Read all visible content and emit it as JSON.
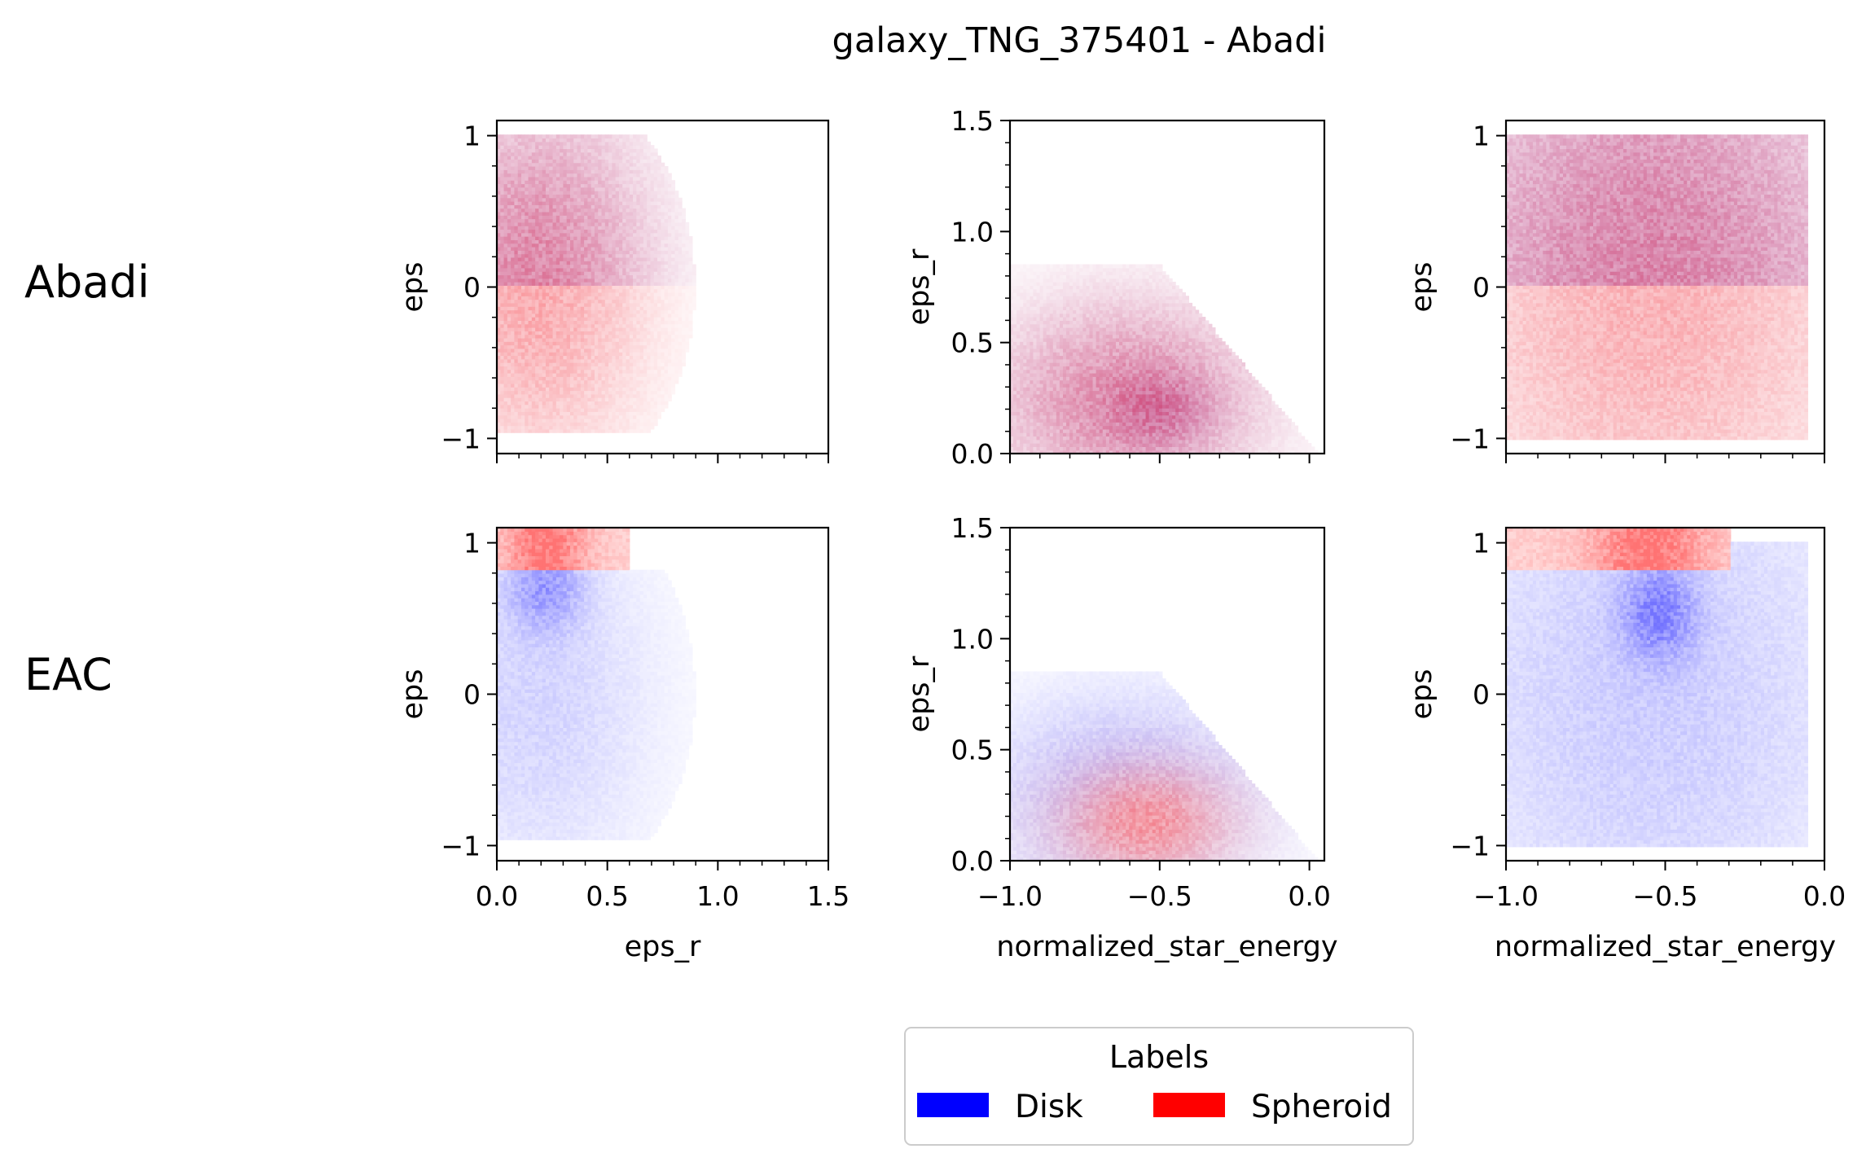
{
  "title": "galaxy_TNG_375401 - Abadi",
  "row_labels": [
    "Abadi",
    "EAC"
  ],
  "legend": {
    "title": "Labels",
    "entries": [
      {
        "name": "Disk",
        "color": "#0000ff"
      },
      {
        "name": "Spheroid",
        "color": "#ff0000"
      }
    ]
  },
  "colors": {
    "disk": "#0000ff",
    "spheroid": "#ff0000"
  },
  "chart_data": [
    {
      "type": "heatmap",
      "row": "Abadi",
      "xlabel": "",
      "ylabel": "eps",
      "xlim": [
        0.0,
        1.5
      ],
      "ylim": [
        -1.1,
        1.1
      ],
      "xticks": [],
      "yticks": [
        -1,
        0,
        1
      ],
      "ytick_labels": [
        "−1",
        "0",
        "1"
      ]
    },
    {
      "type": "heatmap",
      "row": "Abadi",
      "xlabel": "",
      "ylabel": "eps_r",
      "xlim": [
        -1.0,
        0.05
      ],
      "ylim": [
        0.0,
        1.5
      ],
      "xticks": [],
      "yticks": [
        0.0,
        0.5,
        1.0,
        1.5
      ],
      "ytick_labels": [
        "0.0",
        "0.5",
        "1.0",
        "1.5"
      ]
    },
    {
      "type": "heatmap",
      "row": "Abadi",
      "xlabel": "",
      "ylabel": "eps",
      "xlim": [
        -1.0,
        0.0
      ],
      "ylim": [
        -1.1,
        1.1
      ],
      "xticks": [],
      "yticks": [
        -1,
        0,
        1
      ],
      "ytick_labels": [
        "−1",
        "0",
        "1"
      ]
    },
    {
      "type": "heatmap",
      "row": "EAC",
      "xlabel": "eps_r",
      "ylabel": "eps",
      "xlim": [
        0.0,
        1.5
      ],
      "ylim": [
        -1.1,
        1.1
      ],
      "xticks": [
        0.0,
        0.5,
        1.0,
        1.5
      ],
      "xtick_labels": [
        "0.0",
        "0.5",
        "1.0",
        "1.5"
      ],
      "yticks": [
        -1,
        0,
        1
      ],
      "ytick_labels": [
        "−1",
        "0",
        "1"
      ]
    },
    {
      "type": "heatmap",
      "row": "EAC",
      "xlabel": "normalized_star_energy",
      "ylabel": "eps_r",
      "xlim": [
        -1.0,
        0.05
      ],
      "ylim": [
        0.0,
        1.5
      ],
      "xticks": [
        -1.0,
        -0.5,
        0.0
      ],
      "xtick_labels": [
        "−1.0",
        "−0.5",
        "0.0"
      ],
      "yticks": [
        0.0,
        0.5,
        1.0,
        1.5
      ],
      "ytick_labels": [
        "0.0",
        "0.5",
        "1.0",
        "1.5"
      ]
    },
    {
      "type": "heatmap",
      "row": "EAC",
      "xlabel": "normalized_star_energy",
      "ylabel": "eps",
      "xlim": [
        -1.0,
        0.0
      ],
      "ylim": [
        -1.1,
        1.1
      ],
      "xticks": [
        -1.0,
        -0.5,
        0.0
      ],
      "xtick_labels": [
        "−1.0",
        "−0.5",
        "0.0"
      ],
      "yticks": [
        -1,
        0,
        1
      ],
      "ytick_labels": [
        "−1",
        "0",
        "1"
      ]
    }
  ]
}
